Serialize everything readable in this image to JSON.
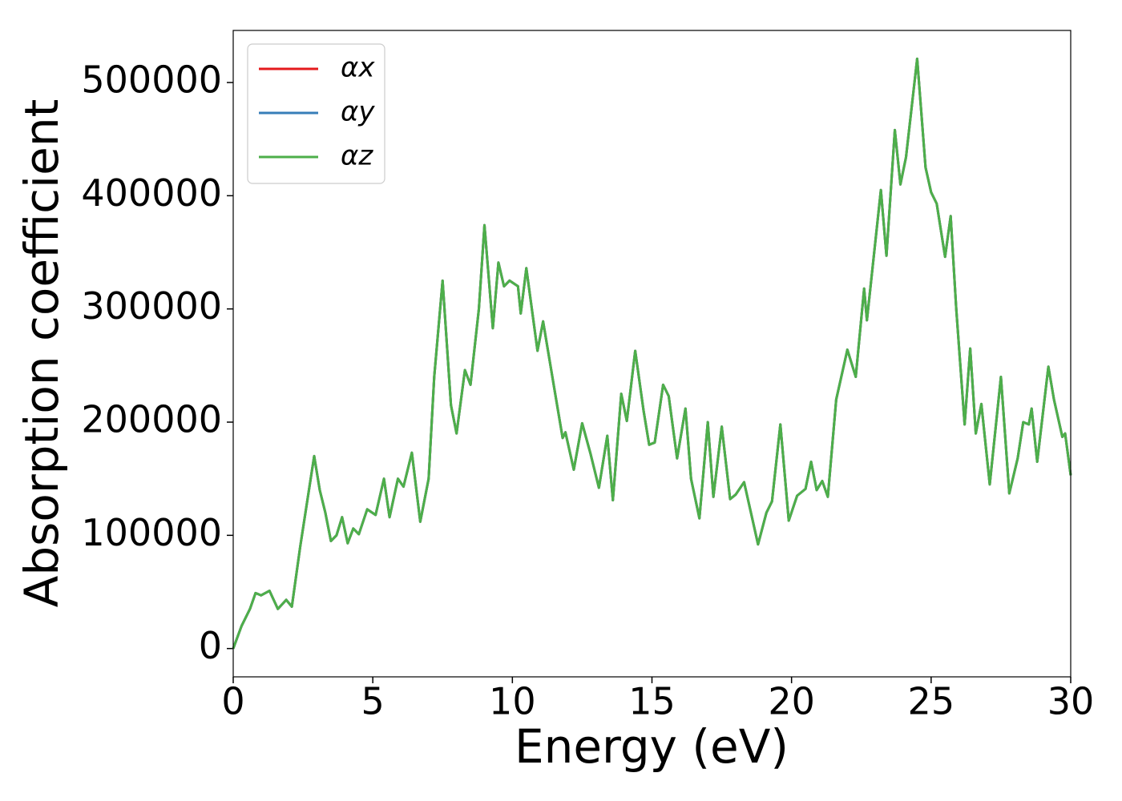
{
  "chart_data": {
    "type": "line",
    "xlabel": "Energy (eV)",
    "ylabel": "Absorption coefficient",
    "x": [
      0,
      0.3,
      0.6,
      0.8,
      1.0,
      1.3,
      1.6,
      1.9,
      2.1,
      2.4,
      2.9,
      3.1,
      3.3,
      3.5,
      3.7,
      3.9,
      4.1,
      4.3,
      4.5,
      4.8,
      5.1,
      5.4,
      5.6,
      5.9,
      6.1,
      6.4,
      6.7,
      7.0,
      7.2,
      7.5,
      7.8,
      8.0,
      8.3,
      8.5,
      8.8,
      9.0,
      9.3,
      9.5,
      9.7,
      9.9,
      10.2,
      10.3,
      10.5,
      10.9,
      11.1,
      11.5,
      11.8,
      11.9,
      12.2,
      12.5,
      12.8,
      13.1,
      13.4,
      13.6,
      13.9,
      14.1,
      14.4,
      14.7,
      14.9,
      15.1,
      15.4,
      15.6,
      15.9,
      16.2,
      16.4,
      16.7,
      17.0,
      17.2,
      17.5,
      17.8,
      18.0,
      18.3,
      18.8,
      19.1,
      19.3,
      19.6,
      19.9,
      20.2,
      20.5,
      20.7,
      20.9,
      21.1,
      21.3,
      21.6,
      22.0,
      22.3,
      22.6,
      22.7,
      23.2,
      23.4,
      23.7,
      23.9,
      24.1,
      24.5,
      24.8,
      25.0,
      25.2,
      25.5,
      25.7,
      25.9,
      26.2,
      26.4,
      26.6,
      26.8,
      27.1,
      27.5,
      27.8,
      28.1,
      28.3,
      28.5,
      28.6,
      28.8,
      29.2,
      29.4,
      29.7,
      29.8,
      30
    ],
    "series": [
      {
        "name": "αx",
        "color": "#e41a1c",
        "values": [
          0,
          20000,
          35000,
          49000,
          47000,
          51000,
          35000,
          43000,
          37000,
          90000,
          170000,
          140000,
          120000,
          95000,
          100000,
          116000,
          93000,
          106000,
          101000,
          123000,
          118000,
          150000,
          116000,
          150000,
          143000,
          173000,
          112000,
          150000,
          240000,
          325000,
          215000,
          190000,
          246000,
          233000,
          300000,
          374000,
          283000,
          341000,
          320000,
          325000,
          320000,
          296000,
          336000,
          263000,
          289000,
          230000,
          186000,
          191000,
          158000,
          199000,
          172000,
          142000,
          188000,
          131000,
          225000,
          201000,
          263000,
          210000,
          180000,
          182000,
          233000,
          223000,
          168000,
          212000,
          150000,
          115000,
          200000,
          134000,
          196000,
          132000,
          136000,
          147000,
          92000,
          120000,
          130000,
          198000,
          113000,
          135000,
          141000,
          165000,
          140000,
          148000,
          134000,
          220000,
          264000,
          240000,
          318000,
          290000,
          405000,
          347000,
          458000,
          410000,
          434000,
          521000,
          425000,
          403000,
          393000,
          346000,
          382000,
          300000,
          198000,
          265000,
          190000,
          216000,
          145000,
          240000,
          137000,
          168000,
          200000,
          198000,
          212000,
          165000,
          249000,
          220000,
          187000,
          190000,
          153000
        ]
      },
      {
        "name": "αy",
        "color": "#377eb8",
        "values": [
          0,
          20000,
          35000,
          49000,
          47000,
          51000,
          35000,
          43000,
          37000,
          90000,
          170000,
          140000,
          120000,
          95000,
          100000,
          116000,
          93000,
          106000,
          101000,
          123000,
          118000,
          150000,
          116000,
          150000,
          143000,
          173000,
          112000,
          150000,
          240000,
          325000,
          215000,
          190000,
          246000,
          233000,
          300000,
          374000,
          283000,
          341000,
          320000,
          325000,
          320000,
          296000,
          336000,
          263000,
          289000,
          230000,
          186000,
          191000,
          158000,
          199000,
          172000,
          142000,
          188000,
          131000,
          225000,
          201000,
          263000,
          210000,
          180000,
          182000,
          233000,
          223000,
          168000,
          212000,
          150000,
          115000,
          200000,
          134000,
          196000,
          132000,
          136000,
          147000,
          92000,
          120000,
          130000,
          198000,
          113000,
          135000,
          141000,
          165000,
          140000,
          148000,
          134000,
          220000,
          264000,
          240000,
          318000,
          290000,
          405000,
          347000,
          458000,
          410000,
          434000,
          521000,
          425000,
          403000,
          393000,
          346000,
          382000,
          300000,
          198000,
          265000,
          190000,
          216000,
          145000,
          240000,
          137000,
          168000,
          200000,
          198000,
          212000,
          165000,
          249000,
          220000,
          187000,
          190000,
          153000
        ]
      },
      {
        "name": "αz",
        "color": "#4daf4a",
        "values": [
          0,
          20000,
          35000,
          49000,
          47000,
          51000,
          35000,
          43000,
          37000,
          90000,
          170000,
          140000,
          120000,
          95000,
          100000,
          116000,
          93000,
          106000,
          101000,
          123000,
          118000,
          150000,
          116000,
          150000,
          143000,
          173000,
          112000,
          150000,
          240000,
          325000,
          215000,
          190000,
          246000,
          233000,
          300000,
          374000,
          283000,
          341000,
          320000,
          325000,
          320000,
          296000,
          336000,
          263000,
          289000,
          230000,
          186000,
          191000,
          158000,
          199000,
          172000,
          142000,
          188000,
          131000,
          225000,
          201000,
          263000,
          210000,
          180000,
          182000,
          233000,
          223000,
          168000,
          212000,
          150000,
          115000,
          200000,
          134000,
          196000,
          132000,
          136000,
          147000,
          92000,
          120000,
          130000,
          198000,
          113000,
          135000,
          141000,
          165000,
          140000,
          148000,
          134000,
          220000,
          264000,
          240000,
          318000,
          290000,
          405000,
          347000,
          458000,
          410000,
          434000,
          521000,
          425000,
          403000,
          393000,
          346000,
          382000,
          300000,
          198000,
          265000,
          190000,
          216000,
          145000,
          240000,
          137000,
          168000,
          200000,
          198000,
          212000,
          165000,
          249000,
          220000,
          187000,
          190000,
          153000
        ]
      }
    ],
    "xlim": [
      0,
      30
    ],
    "xticks": [
      0,
      5,
      10,
      15,
      20,
      25,
      30
    ],
    "ylim": [
      -25000,
      546000
    ],
    "yticks": [
      0,
      100000,
      200000,
      300000,
      400000,
      500000
    ],
    "legend": "upper left",
    "grid": false
  }
}
